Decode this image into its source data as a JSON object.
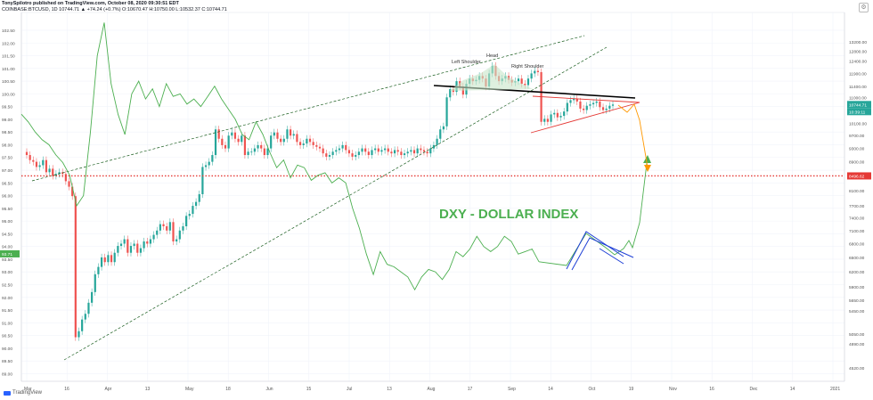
{
  "header": {
    "line1": "TonySpilotro published on TradingView.com, October 08, 2020 09:30:51 EDT",
    "line2": "COINBASE:BTCUSD, 1D  10744.71  ▲ +74.24 (+0.7%)  O:10670.47  H:10750.00  L:10532.37  C:10744.71"
  },
  "colors": {
    "up": "#26a69a",
    "down": "#ef5350",
    "dxy": "#4caf50",
    "support": "#e53935",
    "neckline": "#000000",
    "projection_btc": "#ff9800",
    "projection_dxy": "#4caf50",
    "flag": "#1e3fd6",
    "channel": "#1b5e20"
  },
  "annotations": {
    "dxy_title": "DXY - DOLLAR INDEX",
    "left_shoulder": "Left Shoulder",
    "head": "Head",
    "right_shoulder": "Right Shoulder"
  },
  "watermark": "TradingView",
  "chart_data": {
    "type": "line",
    "title": "",
    "x_ticks": [
      "Mar",
      "16",
      "Apr",
      "13",
      "May",
      "18",
      "Jun",
      "15",
      "Jul",
      "13",
      "Aug",
      "17",
      "Sep",
      "14",
      "Oct",
      "19",
      "Nov",
      "16",
      "Dec",
      "14",
      "2021"
    ],
    "left_axis": {
      "label": "DXY",
      "ticks": [
        89.0,
        89.5,
        90.0,
        90.5,
        91.0,
        91.5,
        92.0,
        92.5,
        93.0,
        93.5,
        94.0,
        94.5,
        95.0,
        95.5,
        96.0,
        96.5,
        97.0,
        97.5,
        98.0,
        98.5,
        99.0,
        99.5,
        100.0,
        100.5,
        101.0,
        101.5,
        102.0,
        102.5
      ],
      "ylim": [
        88.7,
        103.2
      ],
      "current_label": "93.71"
    },
    "right_axis": {
      "label": "BTCUSD",
      "ticks": [
        4520,
        4890,
        5050,
        5450,
        5650,
        5900,
        6200,
        6500,
        6800,
        7100,
        7400,
        7700,
        8100,
        8496.62,
        8900,
        9300,
        9700,
        10100,
        10700,
        11000,
        11400,
        11900,
        12400,
        12800,
        13200
      ],
      "current_label": "10744.71",
      "countdown_label": "10:39:11",
      "support_label": "8496.62"
    },
    "series": [
      {
        "name": "BTCUSD",
        "kind": "candlestick",
        "close": [
          9100,
          8950,
          8900,
          8750,
          8800,
          8950,
          8600,
          8700,
          8500,
          8550,
          8600,
          8550,
          8350,
          8200,
          7950,
          5000,
          5100,
          5300,
          5400,
          5600,
          5800,
          6150,
          6300,
          6500,
          6400,
          6550,
          6400,
          6600,
          6750,
          6800,
          6900,
          6600,
          6750,
          6800,
          6600,
          6700,
          6850,
          6800,
          6900,
          7000,
          7100,
          7250,
          7200,
          7100,
          7300,
          6850,
          6900,
          7100,
          7200,
          7450,
          7500,
          7700,
          7800,
          8000,
          8750,
          8800,
          8900,
          9100,
          9900,
          9600,
          9400,
          9300,
          9700,
          9800,
          9600,
          9500,
          9700,
          9100,
          9200,
          9200,
          9300,
          9400,
          9300,
          9100,
          9300,
          9700,
          9800,
          9600,
          9500,
          9600,
          9900,
          9700,
          9750,
          9500,
          9400,
          9450,
          9600,
          9500,
          9400,
          9350,
          9300,
          9150,
          9050,
          9100,
          9200,
          9250,
          9300,
          9400,
          9250,
          9150,
          9050,
          9100,
          9200,
          9300,
          9200,
          9100,
          9250,
          9300,
          9200,
          9250,
          9300,
          9200,
          9150,
          9250,
          9200,
          9100,
          9150,
          9200,
          9250,
          9150,
          9300,
          9250,
          9200,
          9150,
          9300,
          9400,
          9600,
          9900,
          10000,
          11000,
          11300,
          11200,
          11600,
          11400,
          11100,
          11500,
          11700,
          11600,
          11650,
          11800,
          11700,
          11400,
          11900,
          12200,
          11800,
          11600,
          11700,
          11800,
          11650,
          11550,
          11600,
          11700,
          11500,
          11450,
          11700,
          11900,
          12000,
          11950,
          10150,
          10250,
          10150,
          10400,
          10450,
          10300,
          10350,
          10500,
          10800,
          10900,
          10950,
          10850,
          10600,
          10550,
          10700,
          10750,
          10800,
          10850,
          10650,
          10550,
          10600,
          10700,
          10744
        ]
      },
      {
        "name": "DXY",
        "kind": "line",
        "values": [
          99.2,
          98.9,
          98.5,
          98.2,
          98.0,
          97.6,
          97.3,
          96.8,
          95.6,
          96.0,
          98.5,
          101.5,
          102.8,
          100.4,
          99.2,
          98.4,
          100.0,
          100.5,
          99.8,
          100.2,
          99.5,
          100.4,
          99.9,
          100.0,
          99.6,
          99.8,
          99.5,
          99.9,
          100.3,
          99.8,
          99.4,
          99.0,
          98.4,
          98.2,
          98.9,
          98.4,
          97.7,
          97.1,
          97.4,
          96.7,
          97.2,
          97.1,
          96.6,
          96.8,
          96.9,
          96.5,
          96.7,
          96.5,
          95.5,
          94.7,
          93.7,
          92.9,
          93.8,
          93.3,
          93.2,
          93.0,
          92.8,
          92.3,
          92.8,
          93.1,
          93.0,
          92.7,
          93.1,
          93.8,
          93.6,
          93.9,
          94.4,
          94.0,
          93.8,
          94.0,
          94.4,
          94.2,
          93.7,
          93.8,
          93.9,
          93.4
        ]
      }
    ],
    "left_axis_ticks_note": "",
    "support_level": 8496.62
  }
}
